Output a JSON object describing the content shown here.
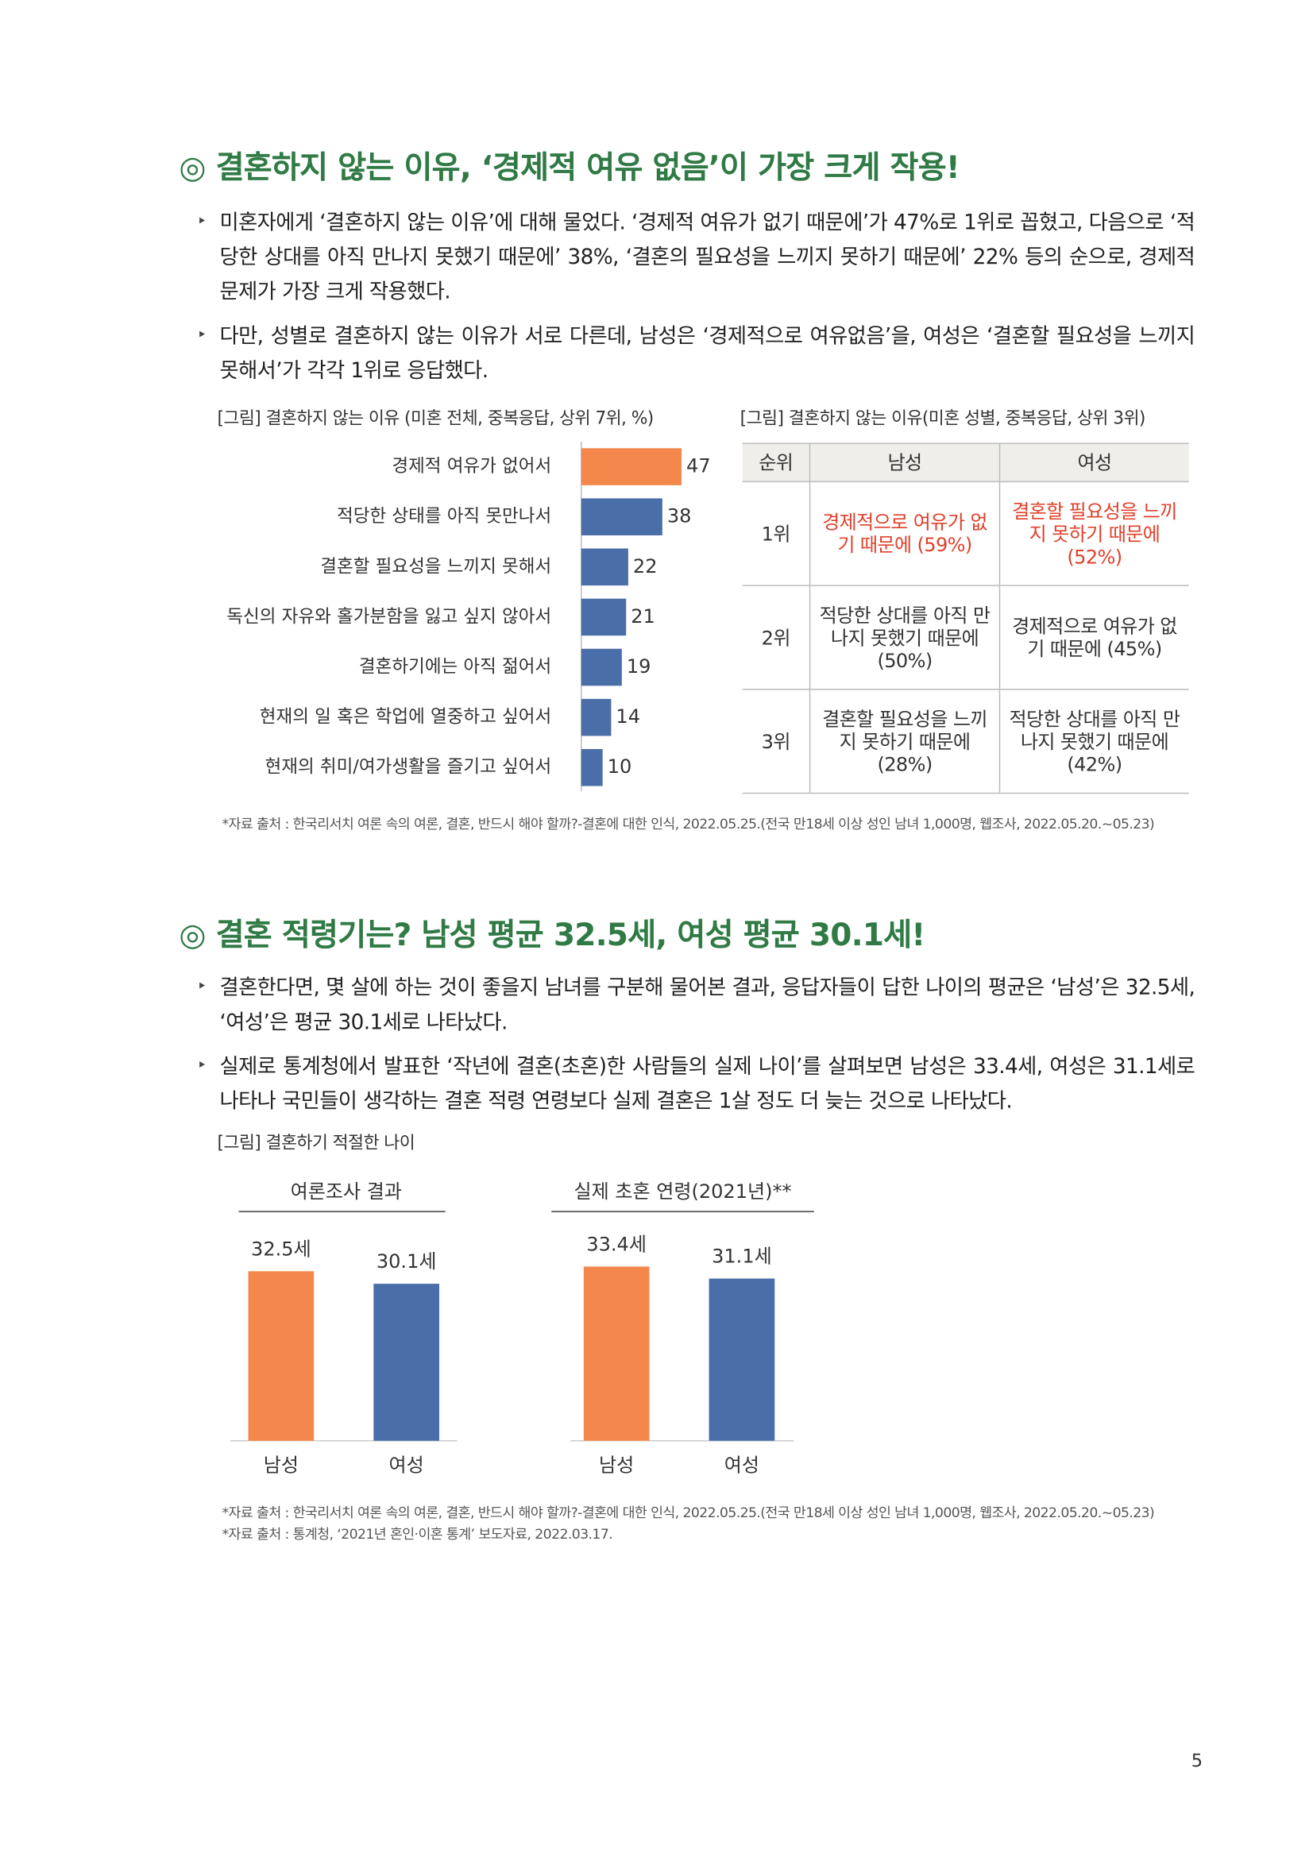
{
  "sections": [
    {
      "title": "◎ 결혼하지 않는 이유, ‘경제적 여유 없음’이 가장 크게 작용!",
      "bullets": [
        "미혼자에게 ‘결혼하지 않는 이유’에 대해 물었다. ‘경제적 여유가 없기 때문에’가 47%로 1위로 꼽혔고, 다음으로 ‘적당한 상대를 아직 만나지 못했기 때문에’ 38%, ‘결혼의 필요성을 느끼지 못하기 때문에’ 22% 등의 순으로, 경제적 문제가 가장 크게 작용했다.",
        "다만, 성별로 결혼하지 않는 이유가 서로 다른데, 남성은 ‘경제적으로 여유없음’을, 여성은 ‘결혼할 필요성을 느끼지 못해서’가 각각 1위로 응답했다."
      ]
    },
    {
      "title": "◎ 결혼 적령기는? 남성 평균 32.5세, 여성 평균 30.1세!",
      "bullets": [
        "결혼한다면, 몇 살에 하는 것이 좋을지 남녀를 구분해 물어본 결과, 응답자들이 답한 나이의 평균은 ‘남성’은 32.5세, ‘여성’은 평균 30.1세로 나타났다.",
        "실제로 통계청에서 발표한 ‘작년에 결혼(초혼)한 사람들의 실제 나이’를 살펴보면 남성은 33.4세, 여성은 31.1세로 나타나 국민들이 생각하는 결혼 적령 연령보다 실제 결혼은 1살 정도 더 늦는 것으로 나타났다."
      ]
    }
  ],
  "table": {
    "caption": "[그림] 결혼하지 않는 이유(미혼 성별, 중복응답, 상위 3위)",
    "header": [
      "순위",
      "남성",
      "여성"
    ],
    "rows": [
      [
        "1위",
        "경제적으로 여유가 없기 때문에 (59%)",
        "결혼할 필요성을 느끼지 못하기 때문에 (52%)"
      ],
      [
        "2위",
        "적당한 상대를 아직 만나지 못했기 때문에 (50%)",
        "경제적으로 여유가 없기 때문에 (45%)"
      ],
      [
        "3위",
        "결혼할 필요성을 느끼지 못하기 때문에 (28%)",
        "적당한 상대를 아직 만나지 못했기 때문에 (42%)"
      ]
    ]
  },
  "figure_caption": "[그림] 결혼하기 적절한 나이",
  "sources": [
    "*자료 출처 : 한국리서치 여론 속의 여론, 결혼, 반드시 해야 할까?-결혼에 대한 인식, 2022.05.25.(전국 만18세 이상 성인 남녀 1,000명, 웹조사, 2022.05.20.~05.23)",
    "*자료 출처 : 한국리서치 여론 속의 여론, 결혼, 반드시 해야 할까?-결혼에 대한 인식, 2022.05.25.(전국 만18세 이상 성인 남녀 1,000명, 웹조사, 2022.05.20.~05.23)",
    "*자료 출처 : 통계청, ‘2021년 혼인·이혼 통계’ 보도자료, 2022.03.17."
  ],
  "page_number": "5",
  "chart_data": [
    {
      "type": "hbar",
      "title": "[그림] 결혼하지 않는 이유 (미혼 전체, 중복응답, 상위 7위, %)",
      "categories": [
        "경제적 여유가 없어서",
        "적당한 상태를 아직 못만나서",
        "결혼할 필요성을 느끼지 못해서",
        "독신의 자유와 홀가분함을 잃고 싶지 않아서",
        "결혼하기에는 아직 젊어서",
        "현재의 일 혹은 학업에 열중하고 싶어서",
        "현재의 취미/여가생활을 즐기고 싶어서"
      ],
      "values": [
        47,
        38,
        22,
        21,
        19,
        14,
        10
      ],
      "colors": [
        "#f4874b",
        "#4a6ea8",
        "#4a6ea8",
        "#4a6ea8",
        "#4a6ea8",
        "#4a6ea8",
        "#4a6ea8"
      ]
    },
    {
      "type": "bar",
      "title": "여론조사 결과",
      "categories": [
        "남성",
        "여성"
      ],
      "values": [
        32.5,
        30.1
      ],
      "value_labels": [
        "32.5세",
        "30.1세"
      ],
      "colors": [
        "#f4874b",
        "#4a6ea8"
      ]
    },
    {
      "type": "bar",
      "title": "실제 초혼 연령(2021년)**",
      "categories": [
        "남성",
        "여성"
      ],
      "values": [
        33.4,
        31.1
      ],
      "value_labels": [
        "33.4세",
        "31.1세"
      ],
      "colors": [
        "#f4874b",
        "#4a6ea8"
      ]
    }
  ]
}
